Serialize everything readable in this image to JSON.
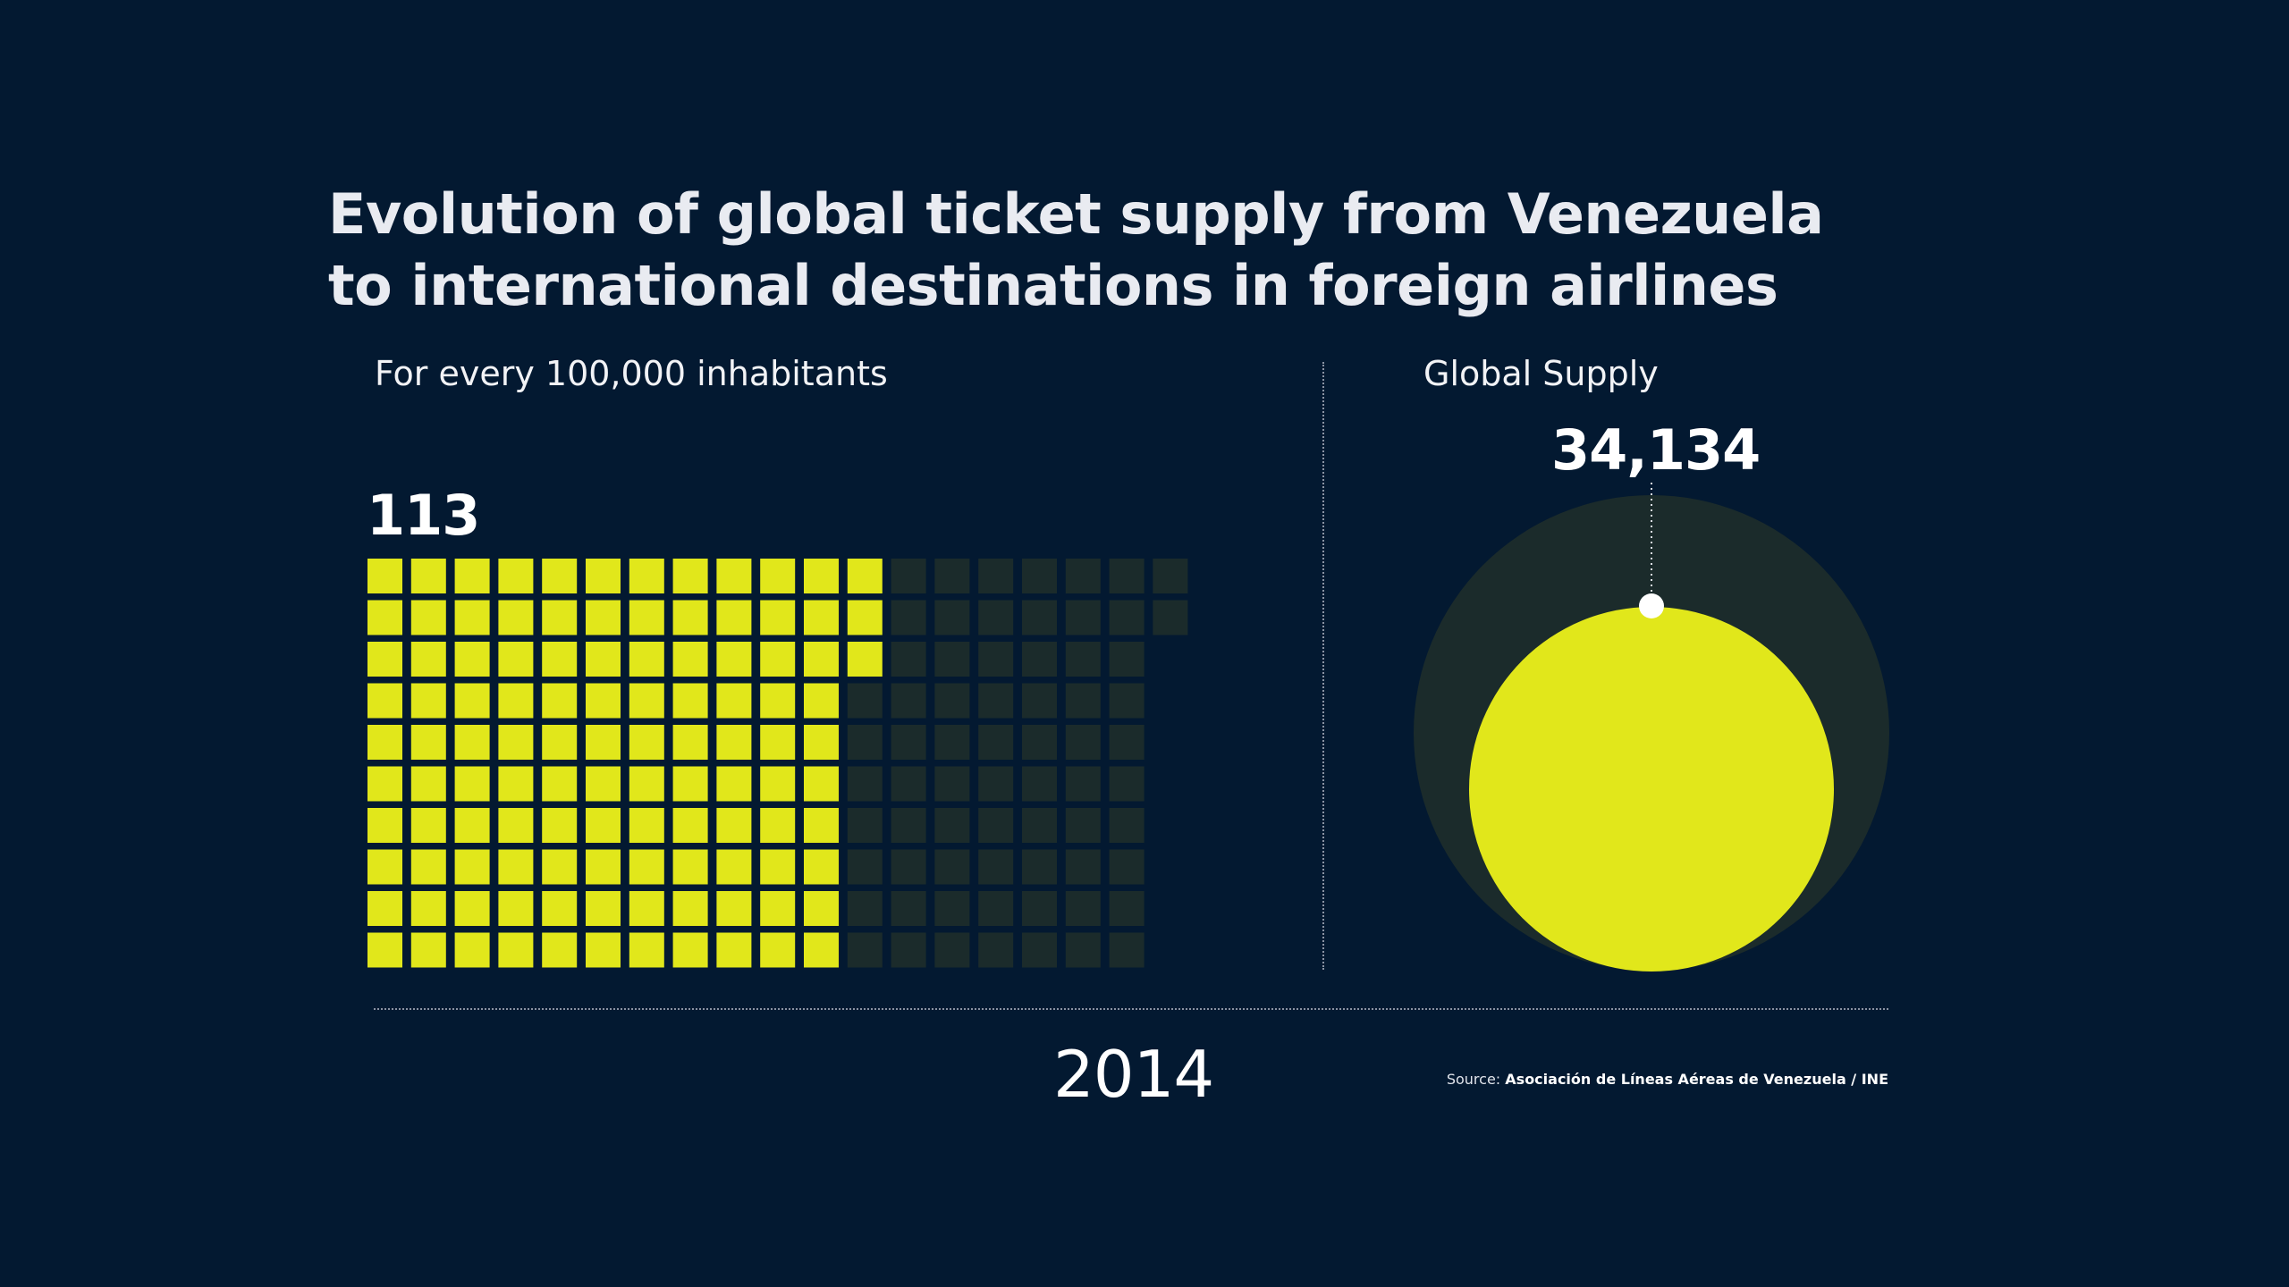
{
  "title_line1": "Evolution of global ticket supply from Venezuela",
  "title_line2": "to international destinations in foreign airlines",
  "waffle_label": "For every 100,000 inhabitants",
  "supply_label": "Global Supply",
  "year": "2014",
  "source_prefix": "Source:",
  "source_text": "Asociación de Líneas Aéreas de Venezuela / INE",
  "colors": {
    "background": "#031931",
    "highlight": "#e1e71b",
    "muted": "#1b2b2b"
  },
  "chart_data": [
    {
      "type": "waffle",
      "title": "For every 100,000 inhabitants",
      "value": 113,
      "value_label": "113",
      "filled_per_column": [
        10,
        10,
        10,
        10,
        10,
        10,
        10,
        10,
        10,
        10,
        10,
        3
      ],
      "column_heights": [
        10,
        10,
        10,
        10,
        10,
        10,
        10,
        10,
        10,
        10,
        10,
        10,
        10,
        10,
        10,
        10,
        10,
        10,
        2
      ]
    },
    {
      "type": "bubble",
      "title": "Global Supply",
      "value": 34134,
      "value_label": "34,134"
    }
  ]
}
